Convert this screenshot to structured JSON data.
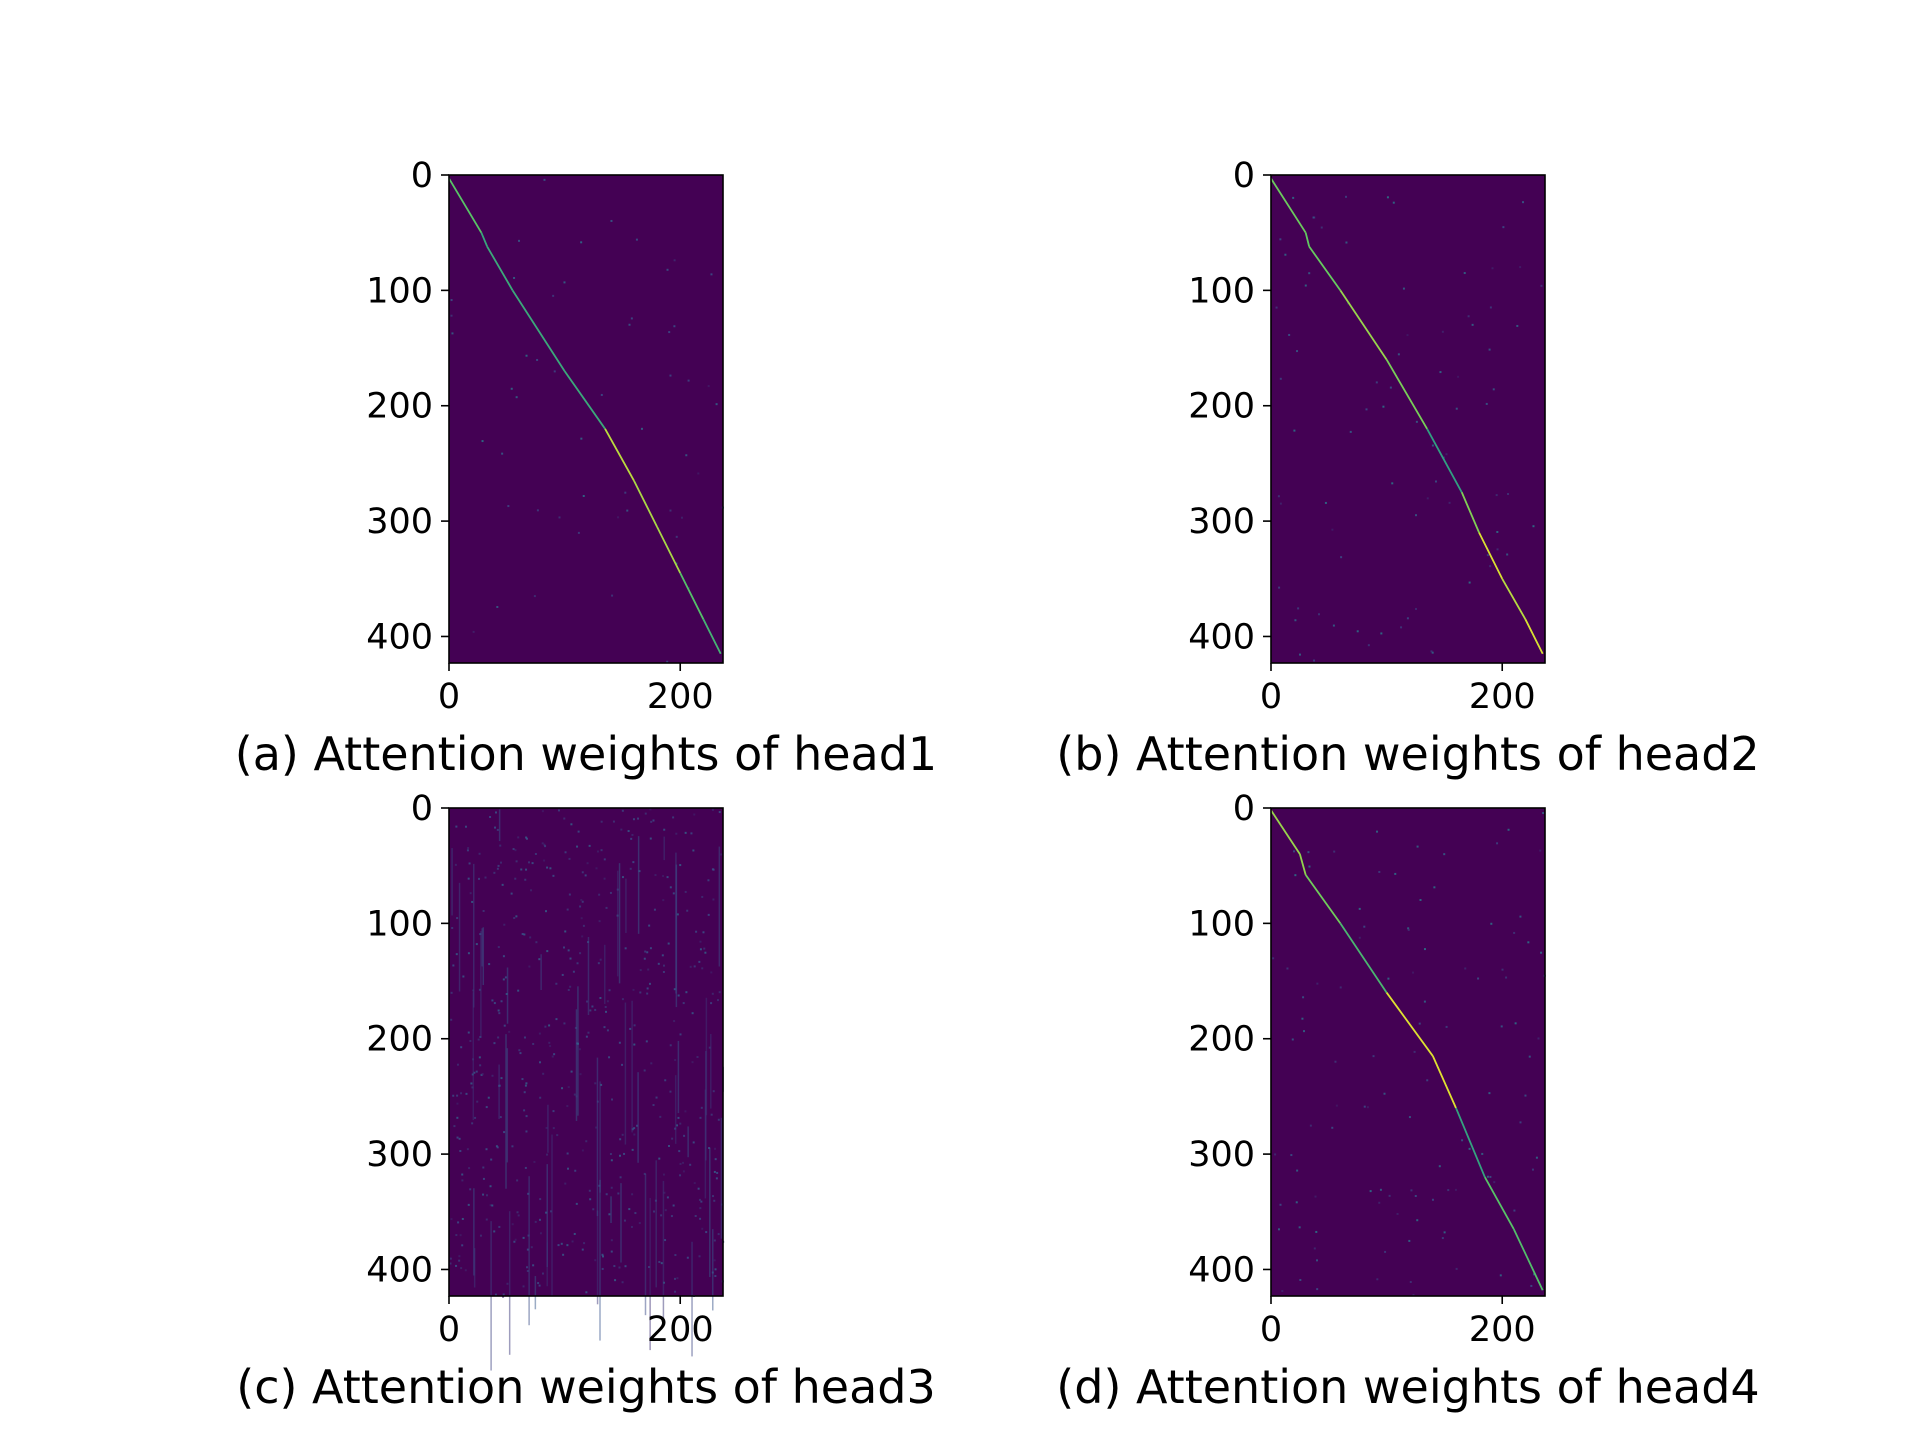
{
  "chart_data": [
    {
      "type": "heatmap",
      "caption": "(a) Attention weights of head1",
      "x_ticks": [
        0,
        200
      ],
      "y_ticks": [
        0,
        100,
        200,
        300,
        400
      ],
      "xlim": [
        0,
        237
      ],
      "ylim": [
        0,
        423
      ],
      "y_inverted": true,
      "colormap": "viridis",
      "noise": 0.02,
      "diagonal": [
        [
          0,
          3
        ],
        [
          28,
          50
        ],
        [
          33,
          62
        ],
        [
          55,
          100
        ],
        [
          100,
          170
        ],
        [
          135,
          220
        ],
        [
          160,
          265
        ],
        [
          180,
          305
        ],
        [
          200,
          345
        ],
        [
          220,
          385
        ],
        [
          235,
          415
        ]
      ],
      "background_color": "#440154",
      "grid": false
    },
    {
      "type": "heatmap",
      "caption": "(b) Attention weights of head2",
      "x_ticks": [
        0,
        200
      ],
      "y_ticks": [
        0,
        100,
        200,
        300,
        400
      ],
      "xlim": [
        0,
        237
      ],
      "ylim": [
        0,
        423
      ],
      "y_inverted": true,
      "colormap": "viridis",
      "noise": 0.04,
      "diagonal": [
        [
          0,
          3
        ],
        [
          30,
          50
        ],
        [
          33,
          62
        ],
        [
          60,
          100
        ],
        [
          100,
          160
        ],
        [
          135,
          220
        ],
        [
          165,
          275
        ],
        [
          180,
          310
        ],
        [
          200,
          350
        ],
        [
          220,
          385
        ],
        [
          235,
          415
        ]
      ],
      "background_color": "#440154",
      "grid": false
    },
    {
      "type": "heatmap",
      "caption": "(c) Attention weights of head3",
      "x_ticks": [
        0,
        200
      ],
      "y_ticks": [
        0,
        100,
        200,
        300,
        400
      ],
      "xlim": [
        0,
        237
      ],
      "ylim": [
        0,
        423
      ],
      "y_inverted": true,
      "colormap": "viridis",
      "noise": 0.35,
      "diagonal": [],
      "background_color": "#440154",
      "grid": false
    },
    {
      "type": "heatmap",
      "caption": "(d) Attention weights of head4",
      "x_ticks": [
        0,
        200
      ],
      "y_ticks": [
        0,
        100,
        200,
        300,
        400
      ],
      "xlim": [
        0,
        237
      ],
      "ylim": [
        0,
        423
      ],
      "y_inverted": true,
      "colormap": "viridis",
      "noise": 0.06,
      "diagonal": [
        [
          0,
          2
        ],
        [
          25,
          40
        ],
        [
          30,
          58
        ],
        [
          60,
          100
        ],
        [
          100,
          160
        ],
        [
          140,
          215
        ],
        [
          160,
          260
        ],
        [
          185,
          320
        ],
        [
          210,
          365
        ],
        [
          235,
          418
        ]
      ],
      "background_color": "#440154",
      "grid": false
    }
  ]
}
